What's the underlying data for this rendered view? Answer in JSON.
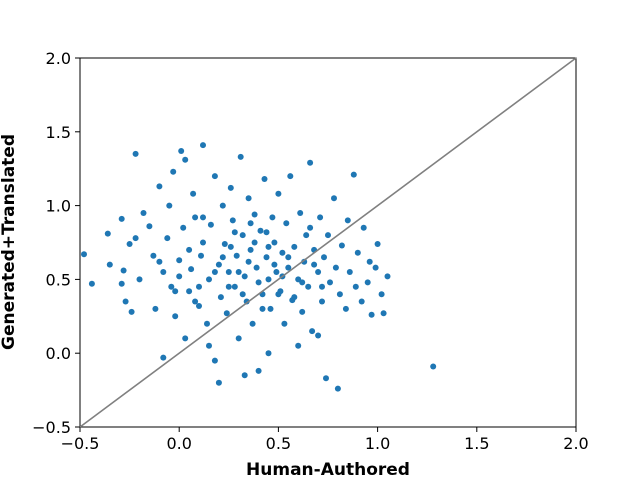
{
  "chart_data": {
    "type": "scatter",
    "title": "",
    "xlabel": "Human-Authored",
    "ylabel": "Generated+Translated",
    "xlim": [
      -0.5,
      2.0
    ],
    "ylim": [
      -0.5,
      2.0
    ],
    "x_ticks": [
      -0.5,
      0.0,
      0.5,
      1.0,
      1.5,
      2.0
    ],
    "y_ticks": [
      -0.5,
      0.0,
      0.5,
      1.0,
      1.5,
      2.0
    ],
    "x_tick_labels": [
      "−0.5",
      "0.0",
      "0.5",
      "1.0",
      "1.5",
      "2.0"
    ],
    "y_tick_labels": [
      "−0.5",
      "0.0",
      "0.5",
      "1.0",
      "1.5",
      "2.0"
    ],
    "grid": false,
    "reference_line": {
      "x": [
        -0.5,
        2.0
      ],
      "y": [
        -0.5,
        2.0
      ],
      "color": "#808080"
    },
    "point_color": "#1f77b4",
    "series": [
      {
        "points": [
          [
            -0.48,
            0.67
          ],
          [
            -0.44,
            0.47
          ],
          [
            -0.35,
            0.6
          ],
          [
            -0.36,
            0.81
          ],
          [
            -0.29,
            0.91
          ],
          [
            -0.29,
            0.47
          ],
          [
            -0.28,
            0.56
          ],
          [
            -0.27,
            0.35
          ],
          [
            -0.25,
            0.74
          ],
          [
            -0.24,
            0.28
          ],
          [
            -0.22,
            1.35
          ],
          [
            -0.22,
            0.78
          ],
          [
            -0.2,
            0.5
          ],
          [
            -0.18,
            0.95
          ],
          [
            -0.15,
            0.86
          ],
          [
            -0.13,
            0.66
          ],
          [
            -0.12,
            0.3
          ],
          [
            -0.1,
            1.13
          ],
          [
            -0.08,
            0.55
          ],
          [
            -0.06,
            0.78
          ],
          [
            -0.05,
            1.0
          ],
          [
            -0.04,
            0.45
          ],
          [
            -0.03,
            1.23
          ],
          [
            -0.02,
            0.25
          ],
          [
            0.0,
            0.63
          ],
          [
            0.01,
            1.37
          ],
          [
            0.02,
            0.85
          ],
          [
            0.03,
            1.31
          ],
          [
            0.03,
            0.1
          ],
          [
            0.05,
            0.42
          ],
          [
            0.06,
            0.57
          ],
          [
            0.07,
            1.08
          ],
          [
            0.08,
            0.92
          ],
          [
            0.1,
            0.32
          ],
          [
            0.11,
            0.66
          ],
          [
            0.12,
            1.41
          ],
          [
            0.12,
            0.75
          ],
          [
            0.14,
            0.2
          ],
          [
            0.15,
            0.5
          ],
          [
            0.16,
            0.87
          ],
          [
            0.18,
            1.2
          ],
          [
            0.18,
            -0.05
          ],
          [
            0.2,
            0.6
          ],
          [
            0.21,
            0.38
          ],
          [
            0.22,
            1.0
          ],
          [
            0.23,
            0.74
          ],
          [
            0.24,
            0.27
          ],
          [
            0.25,
            0.55
          ],
          [
            0.26,
            1.12
          ],
          [
            0.27,
            0.9
          ],
          [
            0.28,
            0.45
          ],
          [
            0.29,
            0.66
          ],
          [
            0.3,
            0.1
          ],
          [
            0.31,
            1.33
          ],
          [
            0.32,
            0.8
          ],
          [
            0.33,
            0.52
          ],
          [
            0.34,
            0.35
          ],
          [
            0.35,
            1.05
          ],
          [
            0.36,
            0.7
          ],
          [
            0.37,
            0.2
          ],
          [
            0.38,
            0.94
          ],
          [
            0.39,
            0.58
          ],
          [
            0.4,
            -0.12
          ],
          [
            0.41,
            0.83
          ],
          [
            0.42,
            0.4
          ],
          [
            0.43,
            1.18
          ],
          [
            0.44,
            0.65
          ],
          [
            0.45,
            0.5
          ],
          [
            0.46,
            0.3
          ],
          [
            0.47,
            0.92
          ],
          [
            0.48,
            0.75
          ],
          [
            0.49,
            0.55
          ],
          [
            0.5,
            1.08
          ],
          [
            0.51,
            0.42
          ],
          [
            0.52,
            0.68
          ],
          [
            0.53,
            0.2
          ],
          [
            0.54,
            0.88
          ],
          [
            0.55,
            0.58
          ],
          [
            0.56,
            1.2
          ],
          [
            0.57,
            0.36
          ],
          [
            0.58,
            0.72
          ],
          [
            0.6,
            0.5
          ],
          [
            0.61,
            0.95
          ],
          [
            0.62,
            0.28
          ],
          [
            0.63,
            0.62
          ],
          [
            0.64,
            0.8
          ],
          [
            0.65,
            0.45
          ],
          [
            0.66,
            1.29
          ],
          [
            0.67,
            0.15
          ],
          [
            0.68,
            0.7
          ],
          [
            0.7,
            0.55
          ],
          [
            0.71,
            0.92
          ],
          [
            0.72,
            0.35
          ],
          [
            0.73,
            0.65
          ],
          [
            0.74,
            -0.17
          ],
          [
            0.75,
            0.8
          ],
          [
            0.76,
            0.48
          ],
          [
            0.78,
            1.05
          ],
          [
            0.79,
            0.58
          ],
          [
            0.8,
            -0.24
          ],
          [
            0.81,
            0.4
          ],
          [
            0.82,
            0.73
          ],
          [
            0.84,
            0.3
          ],
          [
            0.85,
            0.9
          ],
          [
            0.86,
            0.55
          ],
          [
            0.88,
            1.21
          ],
          [
            0.89,
            0.45
          ],
          [
            0.9,
            0.68
          ],
          [
            0.92,
            0.35
          ],
          [
            0.93,
            0.85
          ],
          [
            0.95,
            0.48
          ],
          [
            0.96,
            0.62
          ],
          [
            0.97,
            0.26
          ],
          [
            0.99,
            0.58
          ],
          [
            1.0,
            0.74
          ],
          [
            1.02,
            0.4
          ],
          [
            1.03,
            0.27
          ],
          [
            1.05,
            0.52
          ],
          [
            1.28,
            -0.09
          ],
          [
            0.2,
            -0.2
          ],
          [
            0.33,
            -0.15
          ],
          [
            0.45,
            0.0
          ],
          [
            0.15,
            0.05
          ],
          [
            -0.08,
            -0.03
          ],
          [
            0.6,
            0.05
          ],
          [
            0.7,
            0.12
          ],
          [
            0.25,
            0.45
          ],
          [
            0.35,
            0.62
          ],
          [
            0.4,
            0.48
          ],
          [
            0.45,
            0.72
          ],
          [
            0.48,
            0.6
          ],
          [
            0.52,
            0.52
          ],
          [
            0.38,
            0.75
          ],
          [
            0.28,
            0.82
          ],
          [
            0.22,
            0.65
          ],
          [
            0.18,
            0.55
          ],
          [
            0.1,
            0.45
          ],
          [
            0.05,
            0.7
          ],
          [
            0.0,
            0.52
          ],
          [
            0.55,
            0.65
          ],
          [
            0.62,
            0.48
          ],
          [
            0.58,
            0.38
          ],
          [
            0.42,
            0.3
          ],
          [
            0.32,
            0.4
          ],
          [
            0.26,
            0.72
          ],
          [
            0.36,
            0.88
          ],
          [
            0.44,
            0.82
          ],
          [
            0.5,
            0.4
          ],
          [
            0.68,
            0.6
          ],
          [
            0.72,
            0.45
          ],
          [
            0.66,
            0.85
          ],
          [
            0.12,
            0.92
          ],
          [
            0.08,
            0.35
          ],
          [
            -0.02,
            0.42
          ],
          [
            -0.1,
            0.62
          ],
          [
            0.3,
            0.55
          ]
        ]
      }
    ]
  }
}
